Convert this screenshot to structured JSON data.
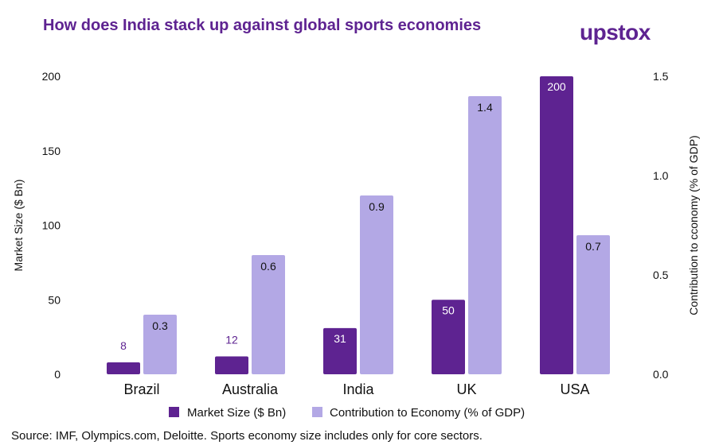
{
  "title": "How does India stack up against global sports economies",
  "brand": "upstox",
  "source": "Source: IMF, Olympics.com, Deloitte. Sports economy size includes only for core sectors.",
  "colors": {
    "market": "#5e2391",
    "contribution": "#b3a8e5",
    "title": "#5e2391"
  },
  "chart_data": {
    "type": "bar",
    "title": "How does India stack up against global sports economies",
    "categories": [
      "Brazil",
      "Australia",
      "India",
      "UK",
      "USA"
    ],
    "series": [
      {
        "name": "Market Size ($ Bn)",
        "axis": "left",
        "values": [
          8,
          12,
          31,
          50,
          200
        ],
        "labels": [
          "8",
          "12",
          "31",
          "50",
          "200"
        ]
      },
      {
        "name": "Contribution to Economy (% of GDP)",
        "axis": "right",
        "values": [
          0.3,
          0.6,
          0.9,
          1.4,
          0.7
        ],
        "labels": [
          "0.3",
          "0.6",
          "0.9",
          "1.4",
          "0.7"
        ]
      }
    ],
    "ylabel": "Market Size ($ Bn)",
    "ylabel_right": "Contribution to cconomy (% of GDP)",
    "ylim": [
      0,
      200
    ],
    "ylim_right": [
      0,
      1.5
    ],
    "yticks": [
      "0",
      "50",
      "100",
      "150",
      "200"
    ],
    "yticks_right": [
      "0.0",
      "0.5",
      "1.0",
      "1.5"
    ],
    "legend_position": "bottom",
    "grid": false
  }
}
